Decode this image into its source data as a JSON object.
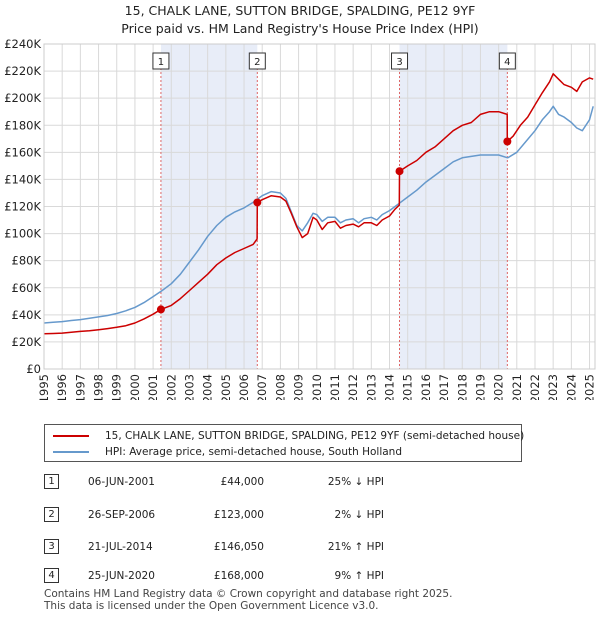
{
  "title_line1": "15, CHALK LANE, SUTTON BRIDGE, SPALDING, PE12 9YF",
  "title_line2": "Price paid vs. HM Land Registry's House Price Index (HPI)",
  "chart_data": {
    "type": "line",
    "title": "15, CHALK LANE, SUTTON BRIDGE, SPALDING, PE12 9YF - Price paid vs. HM Land Registry's House Price Index (HPI)",
    "xlim": [
      1995,
      2025.3
    ],
    "ylim": [
      0,
      240000
    ],
    "y_ticks": [
      0,
      20000,
      40000,
      60000,
      80000,
      100000,
      120000,
      140000,
      160000,
      180000,
      200000,
      220000,
      240000
    ],
    "y_tick_labels": [
      "£0",
      "£20K",
      "£40K",
      "£60K",
      "£80K",
      "£100K",
      "£120K",
      "£140K",
      "£160K",
      "£180K",
      "£200K",
      "£220K",
      "£240K"
    ],
    "x_ticks": [
      1995,
      1996,
      1997,
      1998,
      1999,
      2000,
      2001,
      2002,
      2003,
      2004,
      2005,
      2006,
      2007,
      2008,
      2009,
      2010,
      2011,
      2012,
      2013,
      2014,
      2015,
      2016,
      2017,
      2018,
      2019,
      2020,
      2021,
      2022,
      2023,
      2024,
      2025
    ],
    "x_tick_labels": [
      "1995",
      "1996",
      "1997",
      "1998",
      "1999",
      "2000",
      "2001",
      "2002",
      "2003",
      "2004",
      "2005",
      "2006",
      "2007",
      "2008",
      "2009",
      "2010",
      "2011",
      "2012",
      "2013",
      "2014",
      "2015",
      "2016",
      "2017",
      "2018",
      "2019",
      "2020",
      "2021",
      "2022",
      "2023",
      "2024",
      "2025"
    ],
    "grid": true,
    "shaded_periods": [
      [
        2001.43,
        2006.73
      ],
      [
        2014.55,
        2020.48
      ]
    ],
    "series": [
      {
        "name": "15, CHALK LANE, SUTTON BRIDGE, SPALDING, PE12 9YF (semi-detached house)",
        "color": "#cc0000",
        "x": [
          1995.0,
          1995.5,
          1996.0,
          1996.5,
          1997.0,
          1997.5,
          1998.0,
          1998.5,
          1999.0,
          1999.5,
          2000.0,
          2000.5,
          2001.0,
          2001.43,
          2001.43,
          2002.0,
          2002.5,
          2003.0,
          2003.5,
          2004.0,
          2004.5,
          2005.0,
          2005.5,
          2006.0,
          2006.5,
          2006.72,
          2006.73,
          2007.0,
          2007.5,
          2008.0,
          2008.3,
          2008.6,
          2008.9,
          2009.2,
          2009.5,
          2009.8,
          2010.0,
          2010.3,
          2010.6,
          2011.0,
          2011.3,
          2011.6,
          2012.0,
          2012.3,
          2012.6,
          2013.0,
          2013.3,
          2013.6,
          2014.0,
          2014.3,
          2014.54,
          2014.55,
          2015.0,
          2015.5,
          2016.0,
          2016.5,
          2017.0,
          2017.5,
          2018.0,
          2018.5,
          2019.0,
          2019.5,
          2020.0,
          2020.47,
          2020.48,
          2020.8,
          2021.2,
          2021.6,
          2022.0,
          2022.4,
          2022.8,
          2023.0,
          2023.3,
          2023.6,
          2024.0,
          2024.3,
          2024.6,
          2025.0,
          2025.2
        ],
        "y": [
          26000,
          26200,
          26500,
          27200,
          27800,
          28200,
          29000,
          29800,
          30800,
          32000,
          34000,
          37000,
          40500,
          44000,
          44000,
          47000,
          52000,
          58000,
          64000,
          70000,
          77000,
          82000,
          86000,
          89000,
          92000,
          96000,
          123000,
          125000,
          128000,
          127000,
          124000,
          115000,
          105000,
          97000,
          100000,
          112000,
          110000,
          103000,
          108000,
          109000,
          104000,
          106000,
          107000,
          105000,
          108000,
          108000,
          106000,
          110000,
          113000,
          118000,
          121000,
          146050,
          150000,
          154000,
          160000,
          164000,
          170000,
          176000,
          180000,
          182000,
          188000,
          190000,
          190000,
          188000,
          168000,
          172000,
          180000,
          186000,
          195000,
          204000,
          212000,
          218000,
          214000,
          210000,
          208000,
          205000,
          212000,
          215000,
          214000
        ]
      },
      {
        "name": "HPI: Average price, semi-detached house, South Holland",
        "color": "#6699cc",
        "x": [
          1995.0,
          1995.5,
          1996.0,
          1996.5,
          1997.0,
          1997.5,
          1998.0,
          1998.5,
          1999.0,
          1999.5,
          2000.0,
          2000.5,
          2001.0,
          2001.5,
          2002.0,
          2002.5,
          2003.0,
          2003.5,
          2004.0,
          2004.5,
          2005.0,
          2005.5,
          2006.0,
          2006.5,
          2007.0,
          2007.5,
          2008.0,
          2008.3,
          2008.6,
          2008.9,
          2009.2,
          2009.5,
          2009.8,
          2010.0,
          2010.3,
          2010.6,
          2011.0,
          2011.3,
          2011.6,
          2012.0,
          2012.3,
          2012.6,
          2013.0,
          2013.3,
          2013.6,
          2014.0,
          2014.5,
          2015.0,
          2015.5,
          2016.0,
          2016.5,
          2017.0,
          2017.5,
          2018.0,
          2018.5,
          2019.0,
          2019.5,
          2020.0,
          2020.5,
          2021.0,
          2021.5,
          2022.0,
          2022.4,
          2022.8,
          2023.0,
          2023.3,
          2023.6,
          2024.0,
          2024.3,
          2024.6,
          2025.0,
          2025.2
        ],
        "y": [
          34000,
          34500,
          35000,
          35800,
          36500,
          37500,
          38500,
          39500,
          41000,
          43000,
          45500,
          49000,
          53500,
          58000,
          63000,
          70000,
          79000,
          88000,
          98000,
          106000,
          112000,
          116000,
          119000,
          123000,
          128000,
          131000,
          130000,
          126000,
          116000,
          106000,
          102000,
          108000,
          115000,
          114000,
          109000,
          112000,
          112000,
          108000,
          110000,
          111000,
          108000,
          111000,
          112000,
          110000,
          114000,
          117000,
          122000,
          127000,
          132000,
          138000,
          143000,
          148000,
          153000,
          156000,
          157000,
          158000,
          158000,
          158000,
          156000,
          160000,
          168000,
          176000,
          184000,
          190000,
          194000,
          188000,
          186000,
          182000,
          178000,
          176000,
          184000,
          194000
        ]
      }
    ],
    "sales": [
      {
        "num": "1",
        "x": 2001.43,
        "y": 44000
      },
      {
        "num": "2",
        "x": 2006.73,
        "y": 123000
      },
      {
        "num": "3",
        "x": 2014.55,
        "y": 146050
      },
      {
        "num": "4",
        "x": 2020.48,
        "y": 168000
      }
    ]
  },
  "legend": {
    "items": [
      {
        "label": "15, CHALK LANE, SUTTON BRIDGE, SPALDING, PE12 9YF (semi-detached house)",
        "color": "#cc0000"
      },
      {
        "label": "HPI: Average price, semi-detached house, South Holland",
        "color": "#6699cc"
      }
    ]
  },
  "transactions": [
    {
      "num": "1",
      "date": "06-JUN-2001",
      "price": "£44,000",
      "hpi": "25% ↓ HPI"
    },
    {
      "num": "2",
      "date": "26-SEP-2006",
      "price": "£123,000",
      "hpi": "2% ↓ HPI"
    },
    {
      "num": "3",
      "date": "21-JUL-2014",
      "price": "£146,050",
      "hpi": "21% ↑ HPI"
    },
    {
      "num": "4",
      "date": "25-JUN-2020",
      "price": "£168,000",
      "hpi": "9% ↑ HPI"
    }
  ],
  "footer": {
    "line1": "Contains HM Land Registry data © Crown copyright and database right 2025.",
    "line2": "This data is licensed under the Open Government Licence v3.0."
  }
}
